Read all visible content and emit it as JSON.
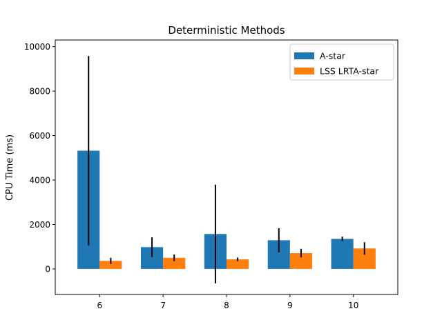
{
  "chart_data": {
    "type": "bar",
    "title": "Deterministic Methods",
    "xlabel": "",
    "ylabel": "CPU Time (ms)",
    "categories": [
      "6",
      "7",
      "8",
      "9",
      "10"
    ],
    "yticks": [
      0,
      2000,
      4000,
      6000,
      8000,
      10000
    ],
    "ylim": [
      -1150,
      10300
    ],
    "legend_position": "top-right",
    "error_bars": true,
    "series": [
      {
        "name": "A-star",
        "color": "#1f77b4",
        "values": [
          5320,
          980,
          1570,
          1290,
          1350
        ],
        "errors": [
          4260,
          440,
          2220,
          540,
          100
        ]
      },
      {
        "name": "LSS LRTA-star",
        "color": "#ff7f0e",
        "values": [
          360,
          500,
          430,
          710,
          920
        ],
        "errors": [
          140,
          150,
          80,
          190,
          280
        ]
      }
    ]
  }
}
